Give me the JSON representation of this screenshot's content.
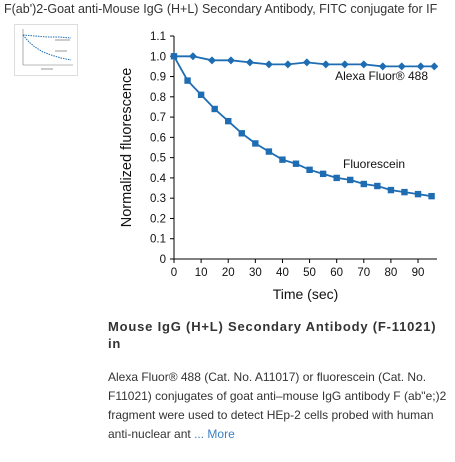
{
  "page": {
    "title": "F(ab')2-Goat anti-Mouse IgG (H+L) Secondary Antibody, FITC conjugate for IF"
  },
  "figure": {
    "heading": "Mouse IgG (H+L) Secondary Antibody (F-11021) in",
    "description": "Alexa Fluor® 488 (Cat. No. A11017) or fluorescein (Cat. No. F11021) conjugates of goat anti–mouse IgG antibody F (ab\"e;)2 fragment were used to detect HEp-2 cells probed with human anti-nuclear ant",
    "more_label": "... More"
  },
  "chart_data": {
    "type": "line",
    "xlabel": "Time (sec)",
    "ylabel": "Normalized fluorescence",
    "xlim": [
      0,
      97
    ],
    "ylim": [
      0,
      1.1
    ],
    "x_ticks": [
      "0",
      "10",
      "20",
      "30",
      "40",
      "50",
      "60",
      "70",
      "80",
      "90"
    ],
    "y_ticks": [
      "0",
      "0.1",
      "0.2",
      "0.3",
      "0.4",
      "0.5",
      "0.6",
      "0.7",
      "0.8",
      "0.9",
      "1.0",
      "1.1"
    ],
    "color": "#1e6db3",
    "series": [
      {
        "name": "Alexa Fluor® 488",
        "marker": "diamond",
        "x": [
          0,
          7,
          14,
          21,
          28,
          35,
          42,
          49,
          56,
          63,
          70,
          77,
          84,
          91,
          96
        ],
        "y": [
          1.0,
          1.0,
          0.98,
          0.98,
          0.97,
          0.96,
          0.96,
          0.97,
          0.96,
          0.96,
          0.96,
          0.95,
          0.95,
          0.95,
          0.95
        ]
      },
      {
        "name": "Fluorescein",
        "marker": "square",
        "x": [
          0,
          5,
          10,
          15,
          20,
          25,
          30,
          35,
          40,
          45,
          50,
          55,
          60,
          65,
          70,
          75,
          80,
          85,
          90,
          95
        ],
        "y": [
          1.0,
          0.88,
          0.81,
          0.74,
          0.68,
          0.62,
          0.57,
          0.53,
          0.49,
          0.47,
          0.44,
          0.42,
          0.4,
          0.39,
          0.37,
          0.36,
          0.34,
          0.33,
          0.32,
          0.31
        ]
      }
    ]
  }
}
